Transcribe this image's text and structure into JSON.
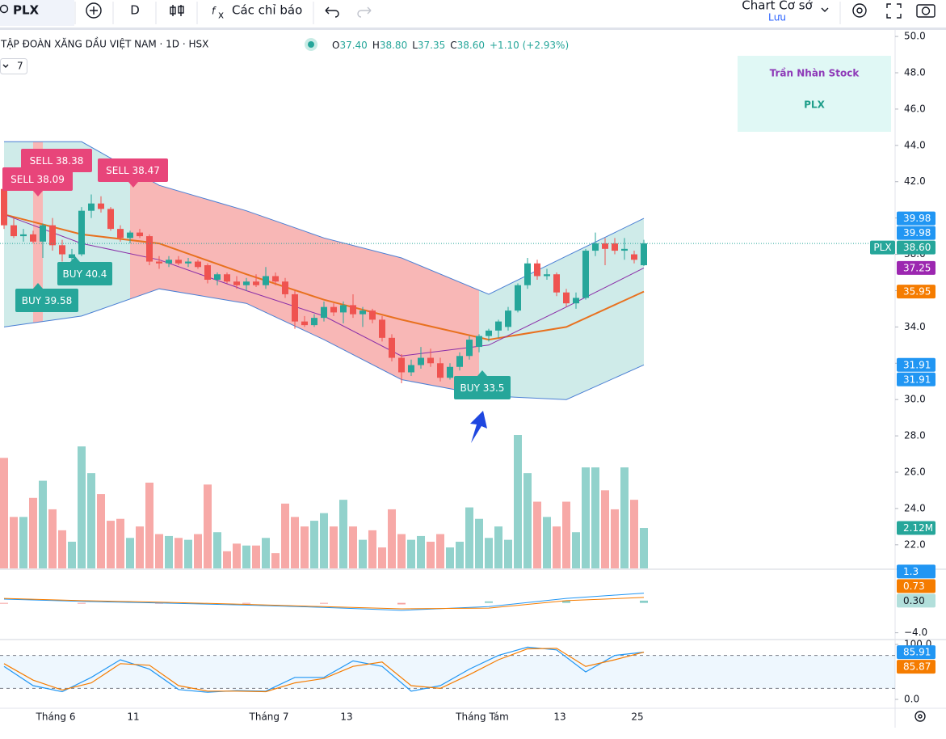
{
  "toolbar": {
    "symbol": "PLX",
    "interval": "D",
    "indicators": "Các chỉ báo",
    "layout": "Chart Cơ sở",
    "save": "Lưu"
  },
  "legend": {
    "title": "TẬP ĐOÀN XĂNG DẦU VIỆT NAM · 1D · HSX",
    "ohlc": [
      "O",
      "37.40",
      "H",
      "38.80",
      "L",
      "37.35",
      "C",
      "38.60",
      "+1.10 (+2.93%)"
    ],
    "indicator_count": "7"
  },
  "watermark": {
    "author": "Trần Nhàn Stock",
    "symbol": "PLX"
  },
  "chart_data": {
    "type": "candlestick",
    "up_color": "#26a69a",
    "down_color": "#ef5350",
    "categories": [
      null,
      null,
      null,
      null,
      null,
      "Tháng 6",
      null,
      null,
      null,
      null,
      null,
      null,
      null,
      "11",
      null,
      null,
      null,
      null,
      null,
      null,
      null,
      null,
      null,
      null,
      null,
      null,
      null,
      "Tháng 7",
      null,
      null,
      null,
      null,
      null,
      null,
      null,
      "13",
      null,
      null,
      null,
      null,
      null,
      null,
      null,
      null,
      null,
      null,
      null,
      null,
      null,
      "Tháng Tám",
      null,
      null,
      null,
      null,
      null,
      null,
      null,
      "13",
      null,
      null,
      null,
      null,
      null,
      null,
      null,
      "25",
      null
    ],
    "ohlc": [
      [
        41.6,
        42.0,
        39.4,
        39.6
      ],
      [
        39.6,
        40.0,
        38.9,
        39.0
      ],
      [
        39.0,
        39.4,
        38.7,
        39.1
      ],
      [
        39.1,
        39.3,
        38.6,
        38.7
      ],
      [
        38.7,
        39.7,
        37.8,
        39.6
      ],
      [
        39.6,
        40.0,
        38.2,
        38.5
      ],
      [
        38.5,
        38.8,
        37.6,
        38.0
      ],
      [
        37.8,
        38.3,
        37.6,
        38.0
      ],
      [
        38.0,
        40.6,
        37.9,
        40.4
      ],
      [
        40.4,
        41.3,
        40.0,
        40.8
      ],
      [
        40.8,
        41.2,
        40.3,
        40.5
      ],
      [
        40.5,
        40.6,
        39.3,
        39.4
      ],
      [
        39.4,
        39.6,
        38.7,
        38.9
      ],
      [
        38.9,
        39.3,
        38.6,
        39.2
      ],
      [
        39.2,
        39.4,
        38.9,
        39.0
      ],
      [
        39.0,
        39.1,
        37.4,
        37.6
      ],
      [
        37.6,
        37.9,
        37.2,
        37.5
      ],
      [
        37.5,
        37.9,
        37.3,
        37.7
      ],
      [
        37.7,
        37.9,
        37.4,
        37.5
      ],
      [
        37.5,
        37.8,
        37.3,
        37.6
      ],
      [
        37.6,
        37.7,
        37.2,
        37.3
      ],
      [
        37.4,
        37.5,
        36.4,
        36.6
      ],
      [
        36.6,
        37.0,
        36.3,
        36.9
      ],
      [
        36.9,
        37.0,
        36.4,
        36.5
      ],
      [
        36.5,
        36.8,
        36.1,
        36.3
      ],
      [
        36.3,
        36.7,
        36.0,
        36.5
      ],
      [
        36.5,
        36.9,
        36.2,
        36.3
      ],
      [
        36.3,
        37.3,
        36.1,
        36.8
      ],
      [
        36.8,
        37.0,
        36.3,
        36.5
      ],
      [
        36.5,
        36.7,
        35.6,
        35.8
      ],
      [
        35.8,
        36.0,
        33.9,
        34.3
      ],
      [
        34.3,
        34.6,
        34.0,
        34.1
      ],
      [
        34.1,
        34.7,
        34.0,
        34.5
      ],
      [
        34.5,
        35.4,
        34.3,
        35.1
      ],
      [
        35.1,
        35.3,
        34.6,
        34.8
      ],
      [
        34.8,
        35.4,
        34.2,
        35.2
      ],
      [
        35.2,
        35.8,
        34.5,
        34.7
      ],
      [
        34.7,
        35.1,
        34.0,
        34.9
      ],
      [
        34.9,
        35.0,
        34.2,
        34.4
      ],
      [
        34.4,
        34.6,
        33.2,
        33.4
      ],
      [
        33.4,
        33.6,
        32.1,
        32.3
      ],
      [
        32.3,
        32.5,
        30.9,
        31.5
      ],
      [
        31.5,
        32.2,
        31.3,
        31.9
      ],
      [
        31.9,
        32.9,
        31.7,
        32.3
      ],
      [
        32.3,
        32.8,
        31.8,
        32.0
      ],
      [
        32.0,
        32.3,
        31.0,
        31.2
      ],
      [
        31.2,
        32.0,
        31.1,
        31.8
      ],
      [
        31.8,
        32.6,
        31.6,
        32.4
      ],
      [
        32.4,
        33.5,
        32.2,
        33.3
      ],
      [
        32.9,
        33.6,
        32.6,
        33.5
      ],
      [
        33.5,
        33.9,
        33.2,
        33.8
      ],
      [
        33.8,
        34.4,
        33.4,
        34.3
      ],
      [
        34.0,
        35.1,
        33.8,
        34.9
      ],
      [
        34.9,
        36.4,
        34.8,
        36.3
      ],
      [
        36.3,
        37.8,
        36.1,
        37.5
      ],
      [
        37.5,
        37.7,
        36.6,
        36.8
      ],
      [
        36.8,
        37.2,
        36.6,
        36.9
      ],
      [
        36.9,
        37.0,
        35.7,
        35.9
      ],
      [
        35.9,
        36.1,
        35.1,
        35.3
      ],
      [
        35.3,
        35.9,
        35.0,
        35.6
      ],
      [
        35.6,
        38.3,
        35.5,
        38.2
      ],
      [
        38.2,
        39.2,
        37.9,
        38.6
      ],
      [
        38.6,
        38.9,
        37.4,
        38.3
      ],
      [
        38.6,
        38.9,
        38.0,
        38.2
      ],
      [
        38.2,
        38.9,
        37.7,
        38.3
      ],
      [
        38.0,
        38.2,
        37.5,
        37.7
      ],
      [
        37.4,
        38.8,
        37.35,
        38.6
      ]
    ],
    "ylim": [
      20.7,
      50.45
    ],
    "yticks": [
      {
        "value": 50,
        "label": "50.0"
      },
      {
        "value": 48,
        "label": "48.0"
      },
      {
        "value": 46,
        "label": "46.0"
      },
      {
        "value": 44,
        "label": "44.0"
      },
      {
        "value": 42,
        "label": "42.0"
      },
      {
        "value": 40,
        "label": "40.0"
      },
      {
        "value": 38,
        "label": "38.0"
      },
      {
        "value": 36,
        "label": "36.0"
      },
      {
        "value": 34,
        "label": "34.0"
      },
      {
        "value": 32,
        "label": "32.0"
      },
      {
        "value": 30,
        "label": "30.0"
      },
      {
        "value": 28,
        "label": "28.0"
      },
      {
        "value": 26,
        "label": "26.0"
      },
      {
        "value": 24,
        "label": "24.0"
      },
      {
        "value": 22,
        "label": "22.0"
      }
    ],
    "grid": false,
    "bands": {
      "x": [
        0,
        8,
        16,
        25,
        33,
        41,
        50,
        58,
        66
      ],
      "upper": [
        44.2,
        44.2,
        41.8,
        40.4,
        38.9,
        37.8,
        35.8,
        37.9,
        39.98
      ],
      "lower": [
        34.0,
        34.6,
        36.1,
        35.3,
        33.3,
        31.1,
        30.2,
        30.0,
        31.91
      ],
      "basis": [
        40.2,
        39.1,
        38.6,
        36.9,
        35.5,
        34.4,
        33.3,
        34.0,
        35.95
      ],
      "fast": [
        40.2,
        38.6,
        37.7,
        36.0,
        34.6,
        32.4,
        33.0,
        35.1,
        37.25
      ],
      "band_color": "#4a7fd4",
      "basis_color": "#e8711f",
      "fast_color": "#8b2fa8"
    },
    "regimes": [
      {
        "from": 0,
        "to": 3,
        "color": "#26a69a"
      },
      {
        "from": 3,
        "to": 4,
        "color": "#ef5350"
      },
      {
        "from": 4,
        "to": 13,
        "color": "#26a69a"
      },
      {
        "from": 13,
        "to": 49,
        "color": "#ef5350"
      },
      {
        "from": 49,
        "to": 66,
        "color": "#26a69a"
      }
    ],
    "signals": [
      {
        "text": "SELL 38.09",
        "side": "sell"
      },
      {
        "text": "SELL 38.38",
        "side": "sell"
      },
      {
        "text": "SELL 38.47",
        "side": "sell"
      },
      {
        "text": "BUY 40.4",
        "side": "buy"
      },
      {
        "text": "BUY 39.58",
        "side": "buy"
      },
      {
        "text": "BUY 33.5",
        "side": "buy"
      }
    ],
    "sell_color": "#e8457a",
    "buy_color": "#26a69a",
    "price_tags": [
      {
        "value": 39.98,
        "color": "#2196f3"
      },
      {
        "value": 39.98,
        "color": "#2196f3"
      },
      {
        "value": 38.6,
        "label": "38.60",
        "name": "PLX",
        "color": "#26a69a"
      },
      {
        "value": 37.25,
        "color": "#9c27b0"
      },
      {
        "value": 35.95,
        "color": "#f57c00"
      },
      {
        "value": 31.91,
        "color": "#2196f3"
      },
      {
        "value": 31.91,
        "color": "#2196f3"
      }
    ],
    "volume": {
      "ylim": [
        0,
        7.0
      ],
      "values": [
        5.8,
        2.7,
        2.7,
        3.7,
        4.6,
        3.1,
        2.0,
        1.4,
        6.4,
        5.0,
        3.9,
        2.5,
        2.6,
        1.6,
        2.2,
        4.5,
        1.8,
        1.7,
        1.6,
        1.5,
        1.8,
        4.4,
        1.9,
        0.9,
        1.3,
        1.2,
        1.2,
        1.6,
        0.8,
        3.4,
        2.7,
        2.2,
        2.5,
        2.9,
        2.2,
        3.6,
        2.2,
        1.5,
        2.0,
        1.1,
        3.1,
        1.8,
        1.5,
        1.7,
        1.4,
        1.8,
        1.1,
        1.4,
        3.2,
        2.6,
        1.6,
        2.2,
        1.5,
        7.0,
        5.0,
        3.5,
        2.7,
        2.2,
        3.5,
        1.9,
        5.3,
        5.3,
        4.1,
        3.1,
        5.3,
        3.6,
        2.12
      ],
      "tag": {
        "value": 2.12,
        "label": "2.12M",
        "color": "#26a69a"
      }
    },
    "macd": {
      "ylim": [
        -4.8,
        4.4
      ],
      "yticks": [
        {
          "value": -4,
          "label": "−4.0"
        }
      ],
      "x": [
        0,
        8,
        16,
        25,
        33,
        41,
        50,
        58,
        66
      ],
      "macd": [
        0.5,
        0.2,
        0.0,
        -0.3,
        -0.6,
        -1.0,
        -0.5,
        0.6,
        1.3
      ],
      "signal": [
        0.6,
        0.3,
        0.1,
        -0.2,
        -0.5,
        -0.8,
        -0.7,
        0.3,
        0.73
      ],
      "hist": [
        -0.1,
        -0.1,
        -0.1,
        -0.1,
        -0.1,
        -0.2,
        0.2,
        0.3,
        0.3
      ],
      "macd_color": "#2196f3",
      "signal_color": "#f57c00",
      "tags": [
        {
          "value": 0.3,
          "label": "0.30",
          "color": "#b2dfdb"
        },
        {
          "value": 0.73,
          "color": "#f57c00"
        },
        {
          "value": 1.3,
          "color": "#2196f3"
        }
      ]
    },
    "stochastic": {
      "ylim": [
        -14.7,
        105.9
      ],
      "yticks": [
        {
          "value": 100,
          "label": "100.0"
        },
        {
          "value": 0,
          "label": "0.0"
        }
      ],
      "bands": [
        80,
        20
      ],
      "x": [
        0,
        3,
        6,
        9,
        12,
        15,
        18,
        21,
        24,
        27,
        30,
        33,
        36,
        39,
        42,
        45,
        48,
        51,
        54,
        57,
        60,
        63,
        66
      ],
      "k": [
        60,
        25,
        14,
        40,
        72,
        55,
        18,
        13,
        16,
        15,
        40,
        40,
        70,
        60,
        15,
        25,
        55,
        80,
        95,
        90,
        50,
        80,
        85.91
      ],
      "d": [
        65,
        35,
        17,
        30,
        65,
        62,
        25,
        15,
        15,
        14,
        30,
        38,
        60,
        68,
        25,
        20,
        45,
        72,
        92,
        93,
        60,
        72,
        85.87
      ],
      "k_color": "#2196f3",
      "d_color": "#f57c00",
      "tags": [
        {
          "value": 85.91,
          "color": "#2196f3"
        },
        {
          "value": 85.87,
          "color": "#f57c00"
        }
      ]
    }
  }
}
